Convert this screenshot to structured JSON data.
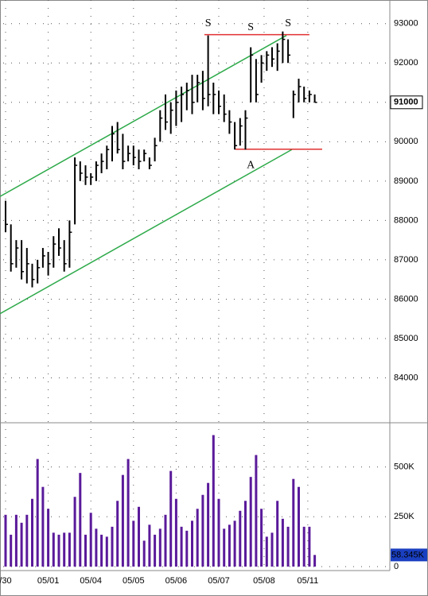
{
  "chart_data": [
    {
      "type": "ohlc",
      "high": [
        88500,
        87900,
        87500,
        87500,
        87300,
        86900,
        87000,
        87300,
        87200,
        87600,
        87800,
        87500,
        88000,
        89600,
        89500,
        89400,
        89200,
        89500,
        89700,
        89900,
        90400,
        90500,
        90200,
        89900,
        89900,
        89800,
        89800,
        89600,
        90100,
        90800,
        91200,
        91000,
        91300,
        91400,
        91500,
        91700,
        91700,
        91800,
        92700,
        91500,
        91300,
        91200,
        90800,
        90500,
        90600,
        90800,
        92400,
        92100,
        92200,
        92300,
        92400,
        92500,
        92800,
        92600,
        91300,
        91600,
        91400,
        91300,
        91200
      ],
      "low": [
        87700,
        86700,
        86800,
        86500,
        86400,
        86300,
        86400,
        86800,
        86600,
        86800,
        87100,
        86700,
        86800,
        87900,
        89000,
        88900,
        88900,
        89000,
        89200,
        89300,
        89500,
        89700,
        89300,
        89500,
        89400,
        89300,
        89500,
        89300,
        89500,
        90000,
        90300,
        90200,
        90400,
        90500,
        90800,
        90700,
        91000,
        90800,
        90900,
        90700,
        90700,
        90500,
        90200,
        89800,
        89900,
        89800,
        91000,
        91000,
        91500,
        91800,
        91900,
        91800,
        92000,
        92000,
        90600,
        91000,
        91000,
        91000,
        91000
      ],
      "close": [
        87900,
        86900,
        87300,
        86700,
        86900,
        86500,
        86800,
        87100,
        86900,
        87400,
        87300,
        86900,
        87700,
        89400,
        89200,
        89100,
        89100,
        89400,
        89500,
        89800,
        90200,
        89800,
        89500,
        89700,
        89600,
        89500,
        89700,
        89400,
        89900,
        90600,
        90500,
        90800,
        91000,
        91200,
        91300,
        91000,
        91500,
        91100,
        91200,
        91200,
        90900,
        90700,
        90500,
        89900,
        90400,
        90600,
        92200,
        91200,
        92000,
        92200,
        92100,
        92300,
        92600,
        92200,
        91200,
        91400,
        91100,
        91200,
        91000
      ],
      "ylim": [
        82900,
        93600
      ],
      "yticks": [
        84000,
        85000,
        86000,
        87000,
        88000,
        89000,
        90000,
        91000,
        92000,
        93000
      ],
      "last_price_label": 91000,
      "date_labels": [
        {
          "index": 0,
          "label": "/30"
        },
        {
          "index": 8,
          "label": "05/01"
        },
        {
          "index": 16,
          "label": "05/04"
        },
        {
          "index": 24,
          "label": "05/05"
        },
        {
          "index": 32,
          "label": "05/06"
        },
        {
          "index": 40,
          "label": "05/07"
        },
        {
          "index": 48.5,
          "label": "05/08"
        },
        {
          "index": 56.7,
          "label": "05/11"
        }
      ],
      "trendlines": [
        {
          "color": "#2eaa4a",
          "x": [
            -1.04,
            52.7
          ],
          "y": [
            88610,
            92700
          ]
        },
        {
          "color": "#2eaa4a",
          "x": [
            -1.04,
            53.7
          ],
          "y": [
            85630,
            89800
          ]
        },
        {
          "color": "#e03030",
          "x": [
            37.3,
            57
          ],
          "y": [
            92720,
            92720
          ]
        },
        {
          "color": "#e03030",
          "x": [
            43.1,
            59.4
          ],
          "y": [
            89810,
            89810
          ]
        }
      ],
      "annotations": [
        {
          "text": "S",
          "color": "#e03030",
          "index": 38,
          "price": 93000
        },
        {
          "text": "S",
          "color": "#e03030",
          "index": 46,
          "price": 92900
        },
        {
          "text": "S",
          "color": "#e03030",
          "index": 53,
          "price": 93000
        },
        {
          "text": "A",
          "color": "#2040d0",
          "index": 46,
          "price": 89400
        }
      ],
      "color": "#000000"
    },
    {
      "type": "volume",
      "values": [
        260,
        160,
        260,
        220,
        260,
        340,
        540,
        400,
        290,
        170,
        160,
        170,
        170,
        350,
        470,
        160,
        270,
        190,
        160,
        150,
        200,
        330,
        460,
        540,
        230,
        300,
        130,
        210,
        160,
        190,
        260,
        480,
        340,
        200,
        180,
        230,
        290,
        360,
        420,
        660,
        340,
        190,
        210,
        230,
        280,
        330,
        450,
        560,
        290,
        150,
        170,
        330,
        240,
        200,
        440,
        400,
        200,
        200,
        58.345
      ],
      "value_labels": [
        null,
        null,
        null,
        null,
        null,
        null,
        null,
        null,
        null,
        null,
        null,
        null,
        null,
        null,
        null,
        null,
        null,
        null,
        null,
        null,
        null,
        null,
        null,
        null,
        null,
        null,
        null,
        null,
        null,
        null,
        null,
        null,
        null,
        null,
        null,
        null,
        null,
        null,
        null,
        null,
        null,
        null,
        null,
        null,
        null,
        null,
        null,
        null,
        null,
        null,
        null,
        null,
        null,
        null,
        null,
        null,
        null,
        null,
        "58.345K"
      ],
      "ylim": [
        -20,
        690
      ],
      "yticks": [
        {
          "value": 0,
          "label": "0"
        },
        {
          "value": 250,
          "label": "250K"
        },
        {
          "value": 500,
          "label": "500K"
        }
      ],
      "color": "#5a1a9a"
    }
  ]
}
